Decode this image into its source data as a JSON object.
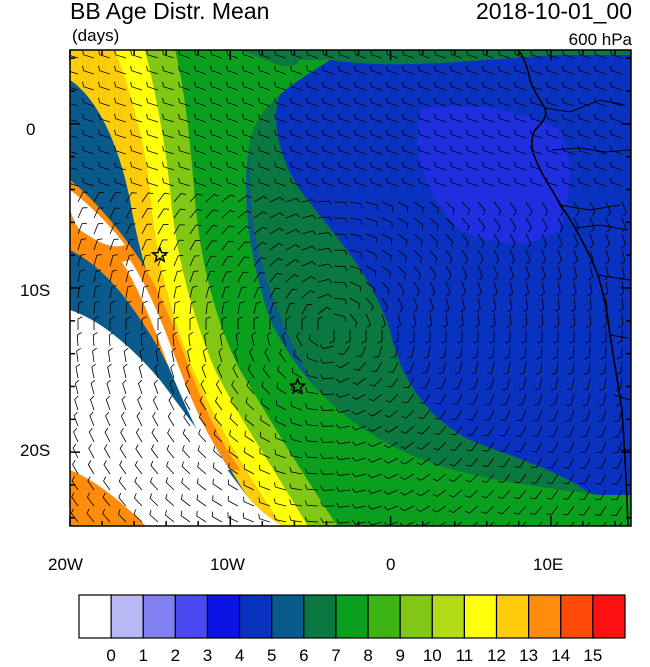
{
  "title": {
    "left": "BB Age Distr. Mean",
    "right": "2018-10-01_00",
    "units": "(days)",
    "level": "600 hPa"
  },
  "map": {
    "region": "Southeast Atlantic / West Africa",
    "lon_range": [
      -20,
      15
    ],
    "lat_range": [
      -24.5,
      4.5
    ],
    "x_ticks": [
      "20W",
      "10W",
      "0",
      "10E"
    ],
    "y_ticks": [
      "0",
      "10S",
      "20S"
    ],
    "markers": [
      {
        "name": "star",
        "lon": -14.4,
        "lat": -8.0
      },
      {
        "name": "star",
        "lon": -5.8,
        "lat": -16.0
      }
    ],
    "wind_barbs": true
  },
  "colorbar": {
    "labels": [
      "0",
      "1",
      "2",
      "3",
      "4",
      "5",
      "6",
      "7",
      "8",
      "9",
      "10",
      "11",
      "12",
      "13",
      "14",
      "15"
    ],
    "colors": [
      "#ffffff",
      "#b8b8f5",
      "#8080f0",
      "#4a4af0",
      "#0a14e6",
      "#0a32c0",
      "#0a5a8c",
      "#0a7840",
      "#0aa01e",
      "#3cb414",
      "#80c814",
      "#b4dc14",
      "#ffff0a",
      "#ffcc0a",
      "#ff8c0a",
      "#ff4a0a",
      "#ff1010"
    ]
  }
}
